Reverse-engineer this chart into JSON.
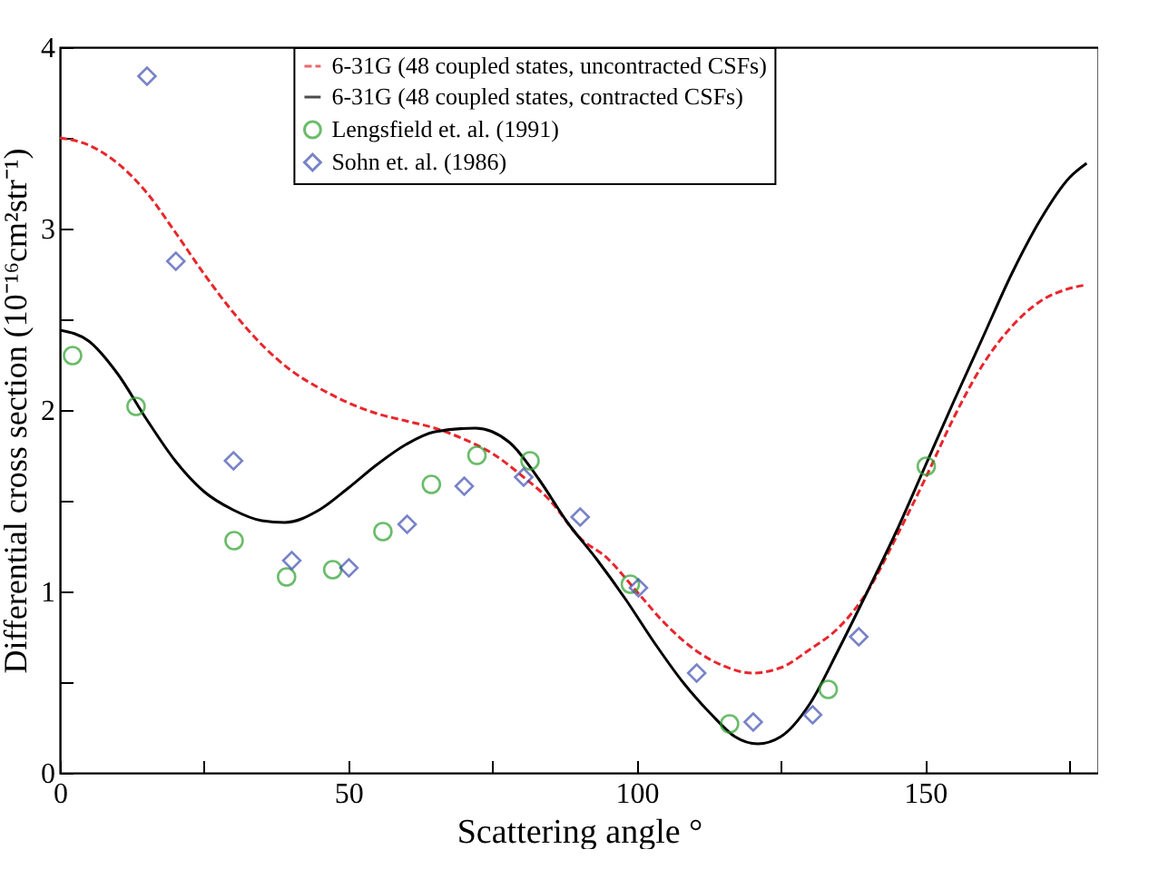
{
  "chart_data": {
    "type": "line",
    "xlabel": "Scattering angle °",
    "ylabel": "Differential cross section (10⁻¹⁶cm²str⁻¹)",
    "xlim": [
      0,
      180
    ],
    "ylim": [
      0,
      4
    ],
    "xticks": [
      0,
      {
        "value": 25,
        "label": null
      },
      50,
      {
        "value": 75,
        "label": null
      },
      100,
      {
        "value": 125,
        "label": null
      },
      150,
      {
        "value": 175,
        "label": null
      }
    ],
    "yticks": [
      0,
      {
        "value": 0.5,
        "label": null
      },
      1,
      {
        "value": 1.5,
        "label": null
      },
      2,
      {
        "value": 2.5,
        "label": null
      },
      3,
      {
        "value": 3.5,
        "label": null
      },
      4
    ],
    "grid": false,
    "legend": "top right",
    "series": [
      {
        "name": "6-31G (48 coupled states, uncontracted CSFs)",
        "line_style": "dashed",
        "color": "#e8262c",
        "x": [
          0,
          5,
          10,
          15,
          20,
          25,
          30,
          35,
          40,
          45,
          50,
          55,
          60,
          65,
          70,
          75,
          80,
          85,
          90,
          95,
          100,
          105,
          110,
          115,
          120,
          125,
          130,
          135,
          140,
          145,
          150,
          155,
          160,
          165,
          170,
          175,
          178
        ],
        "values": [
          3.5,
          3.46,
          3.36,
          3.2,
          2.98,
          2.75,
          2.54,
          2.36,
          2.22,
          2.12,
          2.04,
          1.98,
          1.94,
          1.9,
          1.84,
          1.76,
          1.64,
          1.5,
          1.3,
          1.18,
          1.0,
          0.82,
          0.68,
          0.59,
          0.55,
          0.58,
          0.68,
          0.8,
          1.0,
          1.3,
          1.62,
          1.96,
          2.25,
          2.46,
          2.6,
          2.67,
          2.69
        ]
      },
      {
        "name": "6-31G (48 coupled states, contracted CSFs)",
        "line_style": "solid",
        "color": "#000000",
        "x": [
          0,
          5,
          10,
          15,
          20,
          25,
          30,
          35,
          39,
          45,
          50,
          55,
          60,
          65,
          72,
          78,
          83,
          88,
          93,
          98,
          103,
          108,
          113,
          117,
          121,
          125,
          130,
          135,
          140,
          145,
          150,
          155,
          160,
          165,
          170,
          175,
          178
        ],
        "values": [
          2.44,
          2.38,
          2.2,
          1.95,
          1.72,
          1.55,
          1.45,
          1.39,
          1.38,
          1.45,
          1.57,
          1.7,
          1.81,
          1.88,
          1.9,
          1.82,
          1.62,
          1.38,
          1.18,
          0.96,
          0.72,
          0.5,
          0.32,
          0.2,
          0.16,
          0.2,
          0.38,
          0.68,
          1.0,
          1.33,
          1.69,
          2.05,
          2.4,
          2.75,
          3.05,
          3.28,
          3.36
        ]
      },
      {
        "name": "Lengsfield et. al. (1991)",
        "type": "scatter",
        "marker": "circle",
        "color": "#2ca02c",
        "x": [
          2.2,
          13.2,
          30.2,
          39.3,
          47.3,
          56,
          64.4,
          72.3,
          81.5,
          98.9,
          116.1,
          133.2,
          150.2
        ],
        "values": [
          2.3,
          2.02,
          1.28,
          1.08,
          1.12,
          1.33,
          1.59,
          1.75,
          1.72,
          1.04,
          0.27,
          0.46,
          1.69
        ]
      },
      {
        "name": "Sohn et. al. (1986)",
        "type": "scatter",
        "marker": "diamond",
        "color": "#3f4fb0",
        "x": [
          15.1,
          20.1,
          30.1,
          40.2,
          50.1,
          60.2,
          70.1,
          80.4,
          90.2,
          100.3,
          110.4,
          120.2,
          130.5,
          138.5
        ],
        "values": [
          3.84,
          2.82,
          1.72,
          1.17,
          1.13,
          1.37,
          1.58,
          1.63,
          1.41,
          1.02,
          0.55,
          0.28,
          0.32,
          0.75
        ]
      }
    ]
  }
}
